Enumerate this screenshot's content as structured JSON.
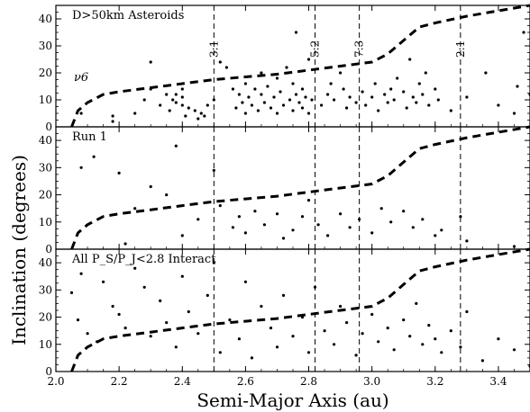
{
  "chart_data": {
    "type": "scatter",
    "xlabel": "Semi-Major Axis (au)",
    "ylabel": "Inclination (degrees)",
    "xlim": [
      2.0,
      3.5
    ],
    "x_ticks": [
      "2.0",
      "2.2",
      "2.4",
      "2.6",
      "2.8",
      "3.0",
      "3.2",
      "3.4"
    ],
    "y_ticks_top": [
      "0",
      "10",
      "20",
      "30",
      "40"
    ],
    "y_ticks": [
      "0",
      "10",
      "20",
      "30",
      "40"
    ],
    "grid": false,
    "resonances": [
      {
        "label": "3:1",
        "a": 2.5
      },
      {
        "label": "5:2",
        "a": 2.82
      },
      {
        "label": "7:3",
        "a": 2.96
      },
      {
        "label": "2:1",
        "a": 3.28
      }
    ],
    "nu6_curve": [
      [
        2.05,
        0
      ],
      [
        2.07,
        6
      ],
      [
        2.1,
        9
      ],
      [
        2.15,
        12
      ],
      [
        2.2,
        13
      ],
      [
        2.3,
        14.5
      ],
      [
        2.4,
        16
      ],
      [
        2.5,
        17.5
      ],
      [
        2.6,
        18.5
      ],
      [
        2.7,
        19.5
      ],
      [
        2.8,
        21
      ],
      [
        2.9,
        22.5
      ],
      [
        3.0,
        24
      ],
      [
        3.05,
        27
      ],
      [
        3.1,
        32
      ],
      [
        3.15,
        37
      ],
      [
        3.2,
        38.5
      ],
      [
        3.3,
        41
      ],
      [
        3.4,
        43
      ],
      [
        3.5,
        45
      ]
    ],
    "panels": [
      {
        "label": "D>50km Asteroids",
        "curve_label": "ν6",
        "ylim": [
          0,
          45
        ],
        "points": [
          [
            2.08,
            5
          ],
          [
            2.18,
            2
          ],
          [
            2.18,
            4
          ],
          [
            2.25,
            5
          ],
          [
            2.28,
            10
          ],
          [
            2.3,
            14
          ],
          [
            2.3,
            24
          ],
          [
            2.33,
            8
          ],
          [
            2.35,
            12
          ],
          [
            2.36,
            6
          ],
          [
            2.37,
            10
          ],
          [
            2.38,
            9
          ],
          [
            2.38,
            12
          ],
          [
            2.4,
            8
          ],
          [
            2.4,
            11
          ],
          [
            2.4,
            14
          ],
          [
            2.41,
            4
          ],
          [
            2.42,
            7
          ],
          [
            2.44,
            6
          ],
          [
            2.45,
            3
          ],
          [
            2.46,
            5
          ],
          [
            2.47,
            4
          ],
          [
            2.48,
            8
          ],
          [
            2.5,
            10
          ],
          [
            2.52,
            24
          ],
          [
            2.54,
            22
          ],
          [
            2.56,
            14
          ],
          [
            2.57,
            7
          ],
          [
            2.58,
            12
          ],
          [
            2.59,
            9
          ],
          [
            2.6,
            5
          ],
          [
            2.6,
            16
          ],
          [
            2.61,
            11
          ],
          [
            2.62,
            8
          ],
          [
            2.63,
            14
          ],
          [
            2.64,
            6
          ],
          [
            2.65,
            12
          ],
          [
            2.65,
            20
          ],
          [
            2.66,
            9
          ],
          [
            2.67,
            15
          ],
          [
            2.68,
            7
          ],
          [
            2.69,
            11
          ],
          [
            2.7,
            5
          ],
          [
            2.7,
            18
          ],
          [
            2.71,
            13
          ],
          [
            2.72,
            8
          ],
          [
            2.73,
            22
          ],
          [
            2.74,
            10
          ],
          [
            2.75,
            6
          ],
          [
            2.75,
            16
          ],
          [
            2.76,
            35
          ],
          [
            2.76,
            12
          ],
          [
            2.77,
            9
          ],
          [
            2.78,
            7
          ],
          [
            2.78,
            14
          ],
          [
            2.79,
            11
          ],
          [
            2.8,
            5
          ],
          [
            2.8,
            25
          ],
          [
            2.81,
            10
          ],
          [
            2.84,
            8
          ],
          [
            2.86,
            12
          ],
          [
            2.87,
            16
          ],
          [
            2.88,
            10
          ],
          [
            2.9,
            20
          ],
          [
            2.91,
            14
          ],
          [
            2.92,
            7
          ],
          [
            2.93,
            11
          ],
          [
            2.95,
            9
          ],
          [
            2.97,
            13
          ],
          [
            2.98,
            8
          ],
          [
            3.0,
            11
          ],
          [
            3.01,
            16
          ],
          [
            3.02,
            6
          ],
          [
            3.04,
            12
          ],
          [
            3.05,
            9
          ],
          [
            3.06,
            14
          ],
          [
            3.07,
            10
          ],
          [
            3.08,
            18
          ],
          [
            3.1,
            13
          ],
          [
            3.11,
            7
          ],
          [
            3.12,
            25
          ],
          [
            3.13,
            11
          ],
          [
            3.14,
            9
          ],
          [
            3.15,
            16
          ],
          [
            3.16,
            12
          ],
          [
            3.17,
            20
          ],
          [
            3.18,
            8
          ],
          [
            3.2,
            14
          ],
          [
            3.21,
            10
          ],
          [
            3.25,
            6
          ],
          [
            3.3,
            11
          ],
          [
            3.36,
            20
          ],
          [
            3.4,
            8
          ],
          [
            3.45,
            5
          ],
          [
            3.46,
            15
          ],
          [
            3.48,
            35
          ],
          [
            3.5,
            12
          ]
        ]
      },
      {
        "label": "Run 1",
        "ylim": [
          0,
          45
        ],
        "points": [
          [
            2.08,
            30
          ],
          [
            2.12,
            34
          ],
          [
            2.2,
            28
          ],
          [
            2.22,
            2
          ],
          [
            2.25,
            15
          ],
          [
            2.3,
            23
          ],
          [
            2.35,
            20
          ],
          [
            2.38,
            38
          ],
          [
            2.4,
            5
          ],
          [
            2.45,
            11
          ],
          [
            2.5,
            29
          ],
          [
            2.52,
            16
          ],
          [
            2.56,
            8
          ],
          [
            2.58,
            12
          ],
          [
            2.6,
            6
          ],
          [
            2.63,
            14
          ],
          [
            2.66,
            9
          ],
          [
            2.7,
            13
          ],
          [
            2.72,
            4
          ],
          [
            2.75,
            7
          ],
          [
            2.78,
            12
          ],
          [
            2.8,
            18
          ],
          [
            2.83,
            9
          ],
          [
            2.86,
            5
          ],
          [
            2.9,
            13
          ],
          [
            2.93,
            8
          ],
          [
            2.96,
            11
          ],
          [
            3.0,
            6
          ],
          [
            3.03,
            15
          ],
          [
            3.06,
            10
          ],
          [
            3.1,
            14
          ],
          [
            3.13,
            8
          ],
          [
            3.16,
            11
          ],
          [
            3.2,
            5
          ],
          [
            3.22,
            7
          ],
          [
            3.28,
            12
          ],
          [
            3.3,
            3
          ],
          [
            3.45,
            1
          ]
        ]
      },
      {
        "label": "All P_S/P_J<2.8 Interact",
        "ylim": [
          0,
          45
        ],
        "points": [
          [
            2.05,
            29
          ],
          [
            2.07,
            19
          ],
          [
            2.08,
            36
          ],
          [
            2.1,
            14
          ],
          [
            2.13,
            11
          ],
          [
            2.15,
            33
          ],
          [
            2.18,
            24
          ],
          [
            2.2,
            21
          ],
          [
            2.22,
            16
          ],
          [
            2.25,
            38
          ],
          [
            2.28,
            31
          ],
          [
            2.3,
            13
          ],
          [
            2.33,
            26
          ],
          [
            2.35,
            18
          ],
          [
            2.38,
            9
          ],
          [
            2.4,
            35
          ],
          [
            2.42,
            22
          ],
          [
            2.45,
            14
          ],
          [
            2.48,
            28
          ],
          [
            2.5,
            40
          ],
          [
            2.52,
            7
          ],
          [
            2.55,
            19
          ],
          [
            2.58,
            12
          ],
          [
            2.6,
            33
          ],
          [
            2.62,
            5
          ],
          [
            2.65,
            24
          ],
          [
            2.68,
            16
          ],
          [
            2.7,
            9
          ],
          [
            2.72,
            28
          ],
          [
            2.75,
            13
          ],
          [
            2.78,
            20
          ],
          [
            2.8,
            7
          ],
          [
            2.82,
            31
          ],
          [
            2.85,
            15
          ],
          [
            2.88,
            10
          ],
          [
            2.9,
            24
          ],
          [
            2.92,
            18
          ],
          [
            2.95,
            6
          ],
          [
            2.97,
            14
          ],
          [
            3.0,
            21
          ],
          [
            3.02,
            11
          ],
          [
            3.05,
            16
          ],
          [
            3.07,
            8
          ],
          [
            3.1,
            19
          ],
          [
            3.12,
            13
          ],
          [
            3.14,
            25
          ],
          [
            3.16,
            10
          ],
          [
            3.18,
            17
          ],
          [
            3.2,
            12
          ],
          [
            3.22,
            7
          ],
          [
            3.25,
            15
          ],
          [
            3.28,
            9
          ],
          [
            3.3,
            22
          ],
          [
            3.35,
            4
          ],
          [
            3.4,
            12
          ],
          [
            3.45,
            8
          ],
          [
            3.5,
            2
          ]
        ]
      }
    ]
  }
}
